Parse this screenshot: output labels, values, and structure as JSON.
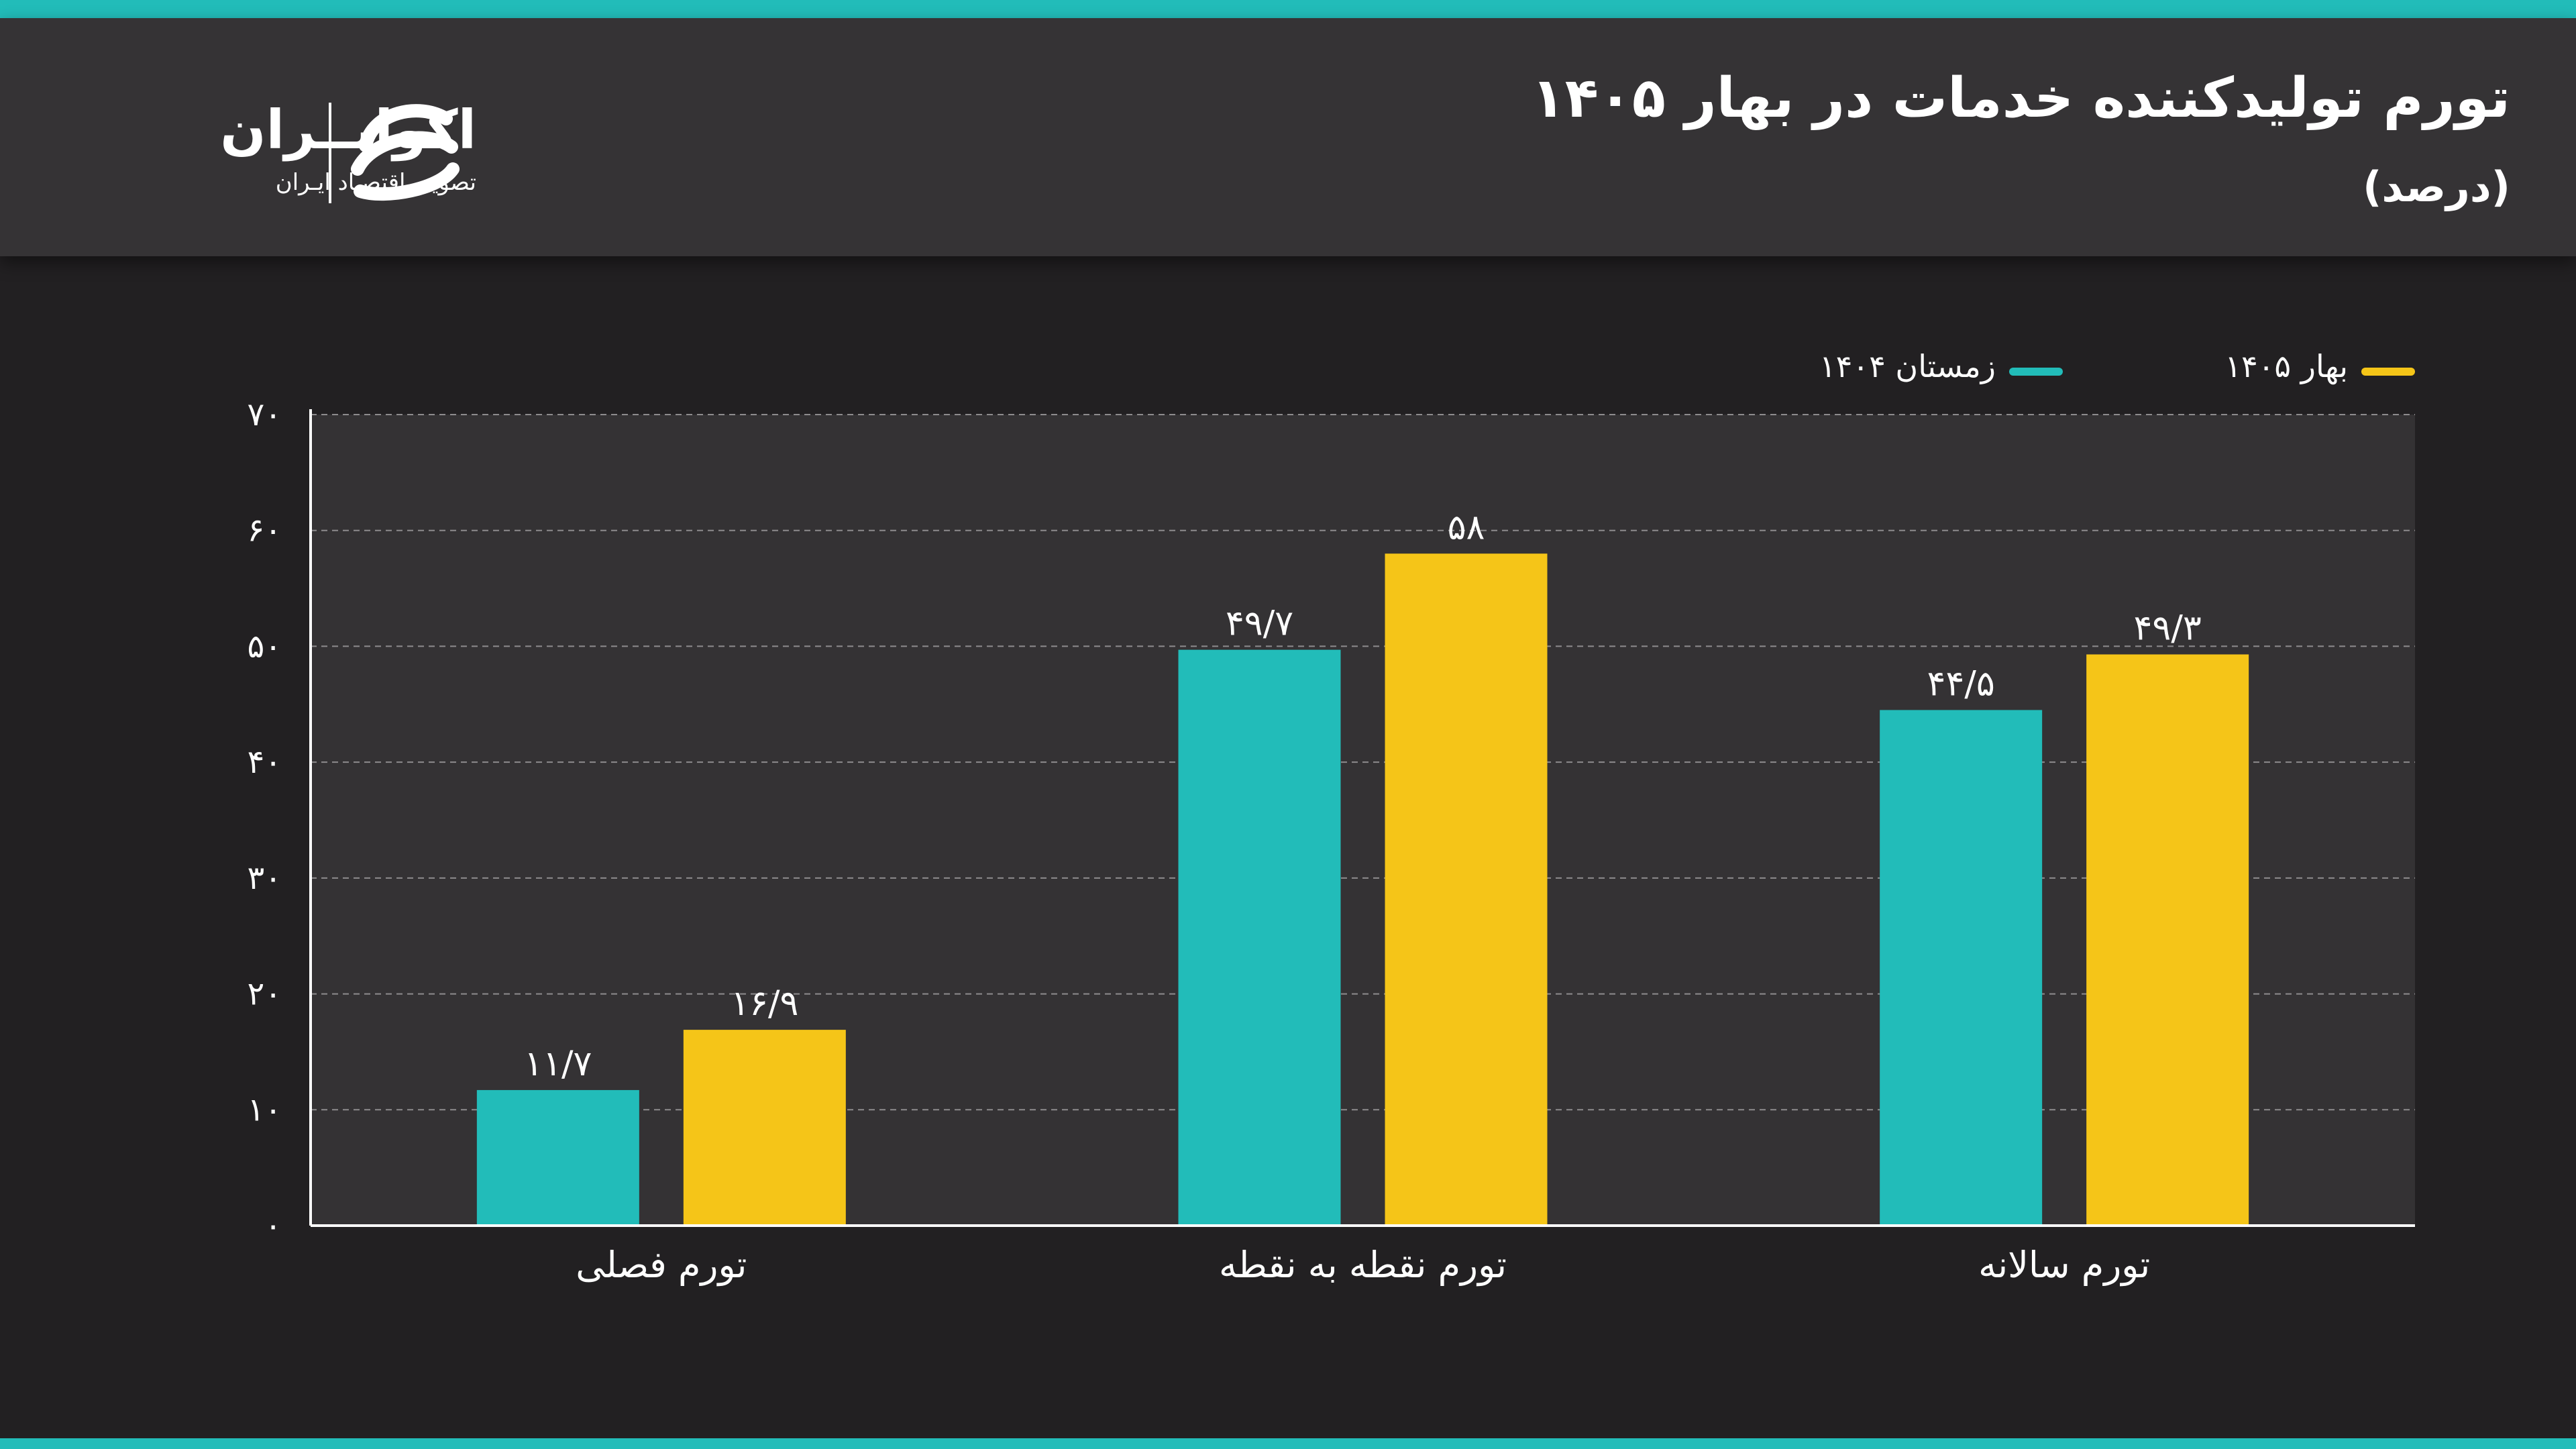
{
  "header": {
    "title": "تورم تولیدکننده خدمات در بهار ۱۴۰۵",
    "subtitle": "(درصد)"
  },
  "logo": {
    "name": "اکوایــران",
    "tagline": "تصویـر اقتصـاد ایـران",
    "icon": "eco-iran-swirl-icon"
  },
  "colors": {
    "accent_teal": "#22bcb9",
    "accent_yellow": "#f5c518",
    "background": "#222022",
    "header_background": "#353335"
  },
  "chart_data": {
    "type": "bar",
    "title": "تورم تولیدکننده خدمات در بهار ۱۴۰۵",
    "ylabel": "",
    "xlabel": "",
    "ylim": [
      0,
      70
    ],
    "yticks": [
      0,
      10,
      20,
      30,
      40,
      50,
      60,
      70
    ],
    "ytick_labels": [
      "۰",
      "۱۰",
      "۲۰",
      "۳۰",
      "۴۰",
      "۵۰",
      "۶۰",
      "۷۰"
    ],
    "grid": true,
    "legend_position": "top-right",
    "categories": [
      "تورم فصلی",
      "تورم نقطه به نقطه",
      "تورم سالانه"
    ],
    "series": [
      {
        "name": "زمستان ۱۴۰۴",
        "color": "#22bcb9",
        "values": [
          11.7,
          49.7,
          44.5
        ],
        "labels": [
          "۱۱/۷",
          "۴۹/۷",
          "۴۴/۵"
        ]
      },
      {
        "name": "بهار ۱۴۰۵",
        "color": "#f5c518",
        "values": [
          16.9,
          58,
          49.3
        ],
        "labels": [
          "۱۶/۹",
          "۵۸",
          "۴۹/۳"
        ]
      }
    ]
  }
}
